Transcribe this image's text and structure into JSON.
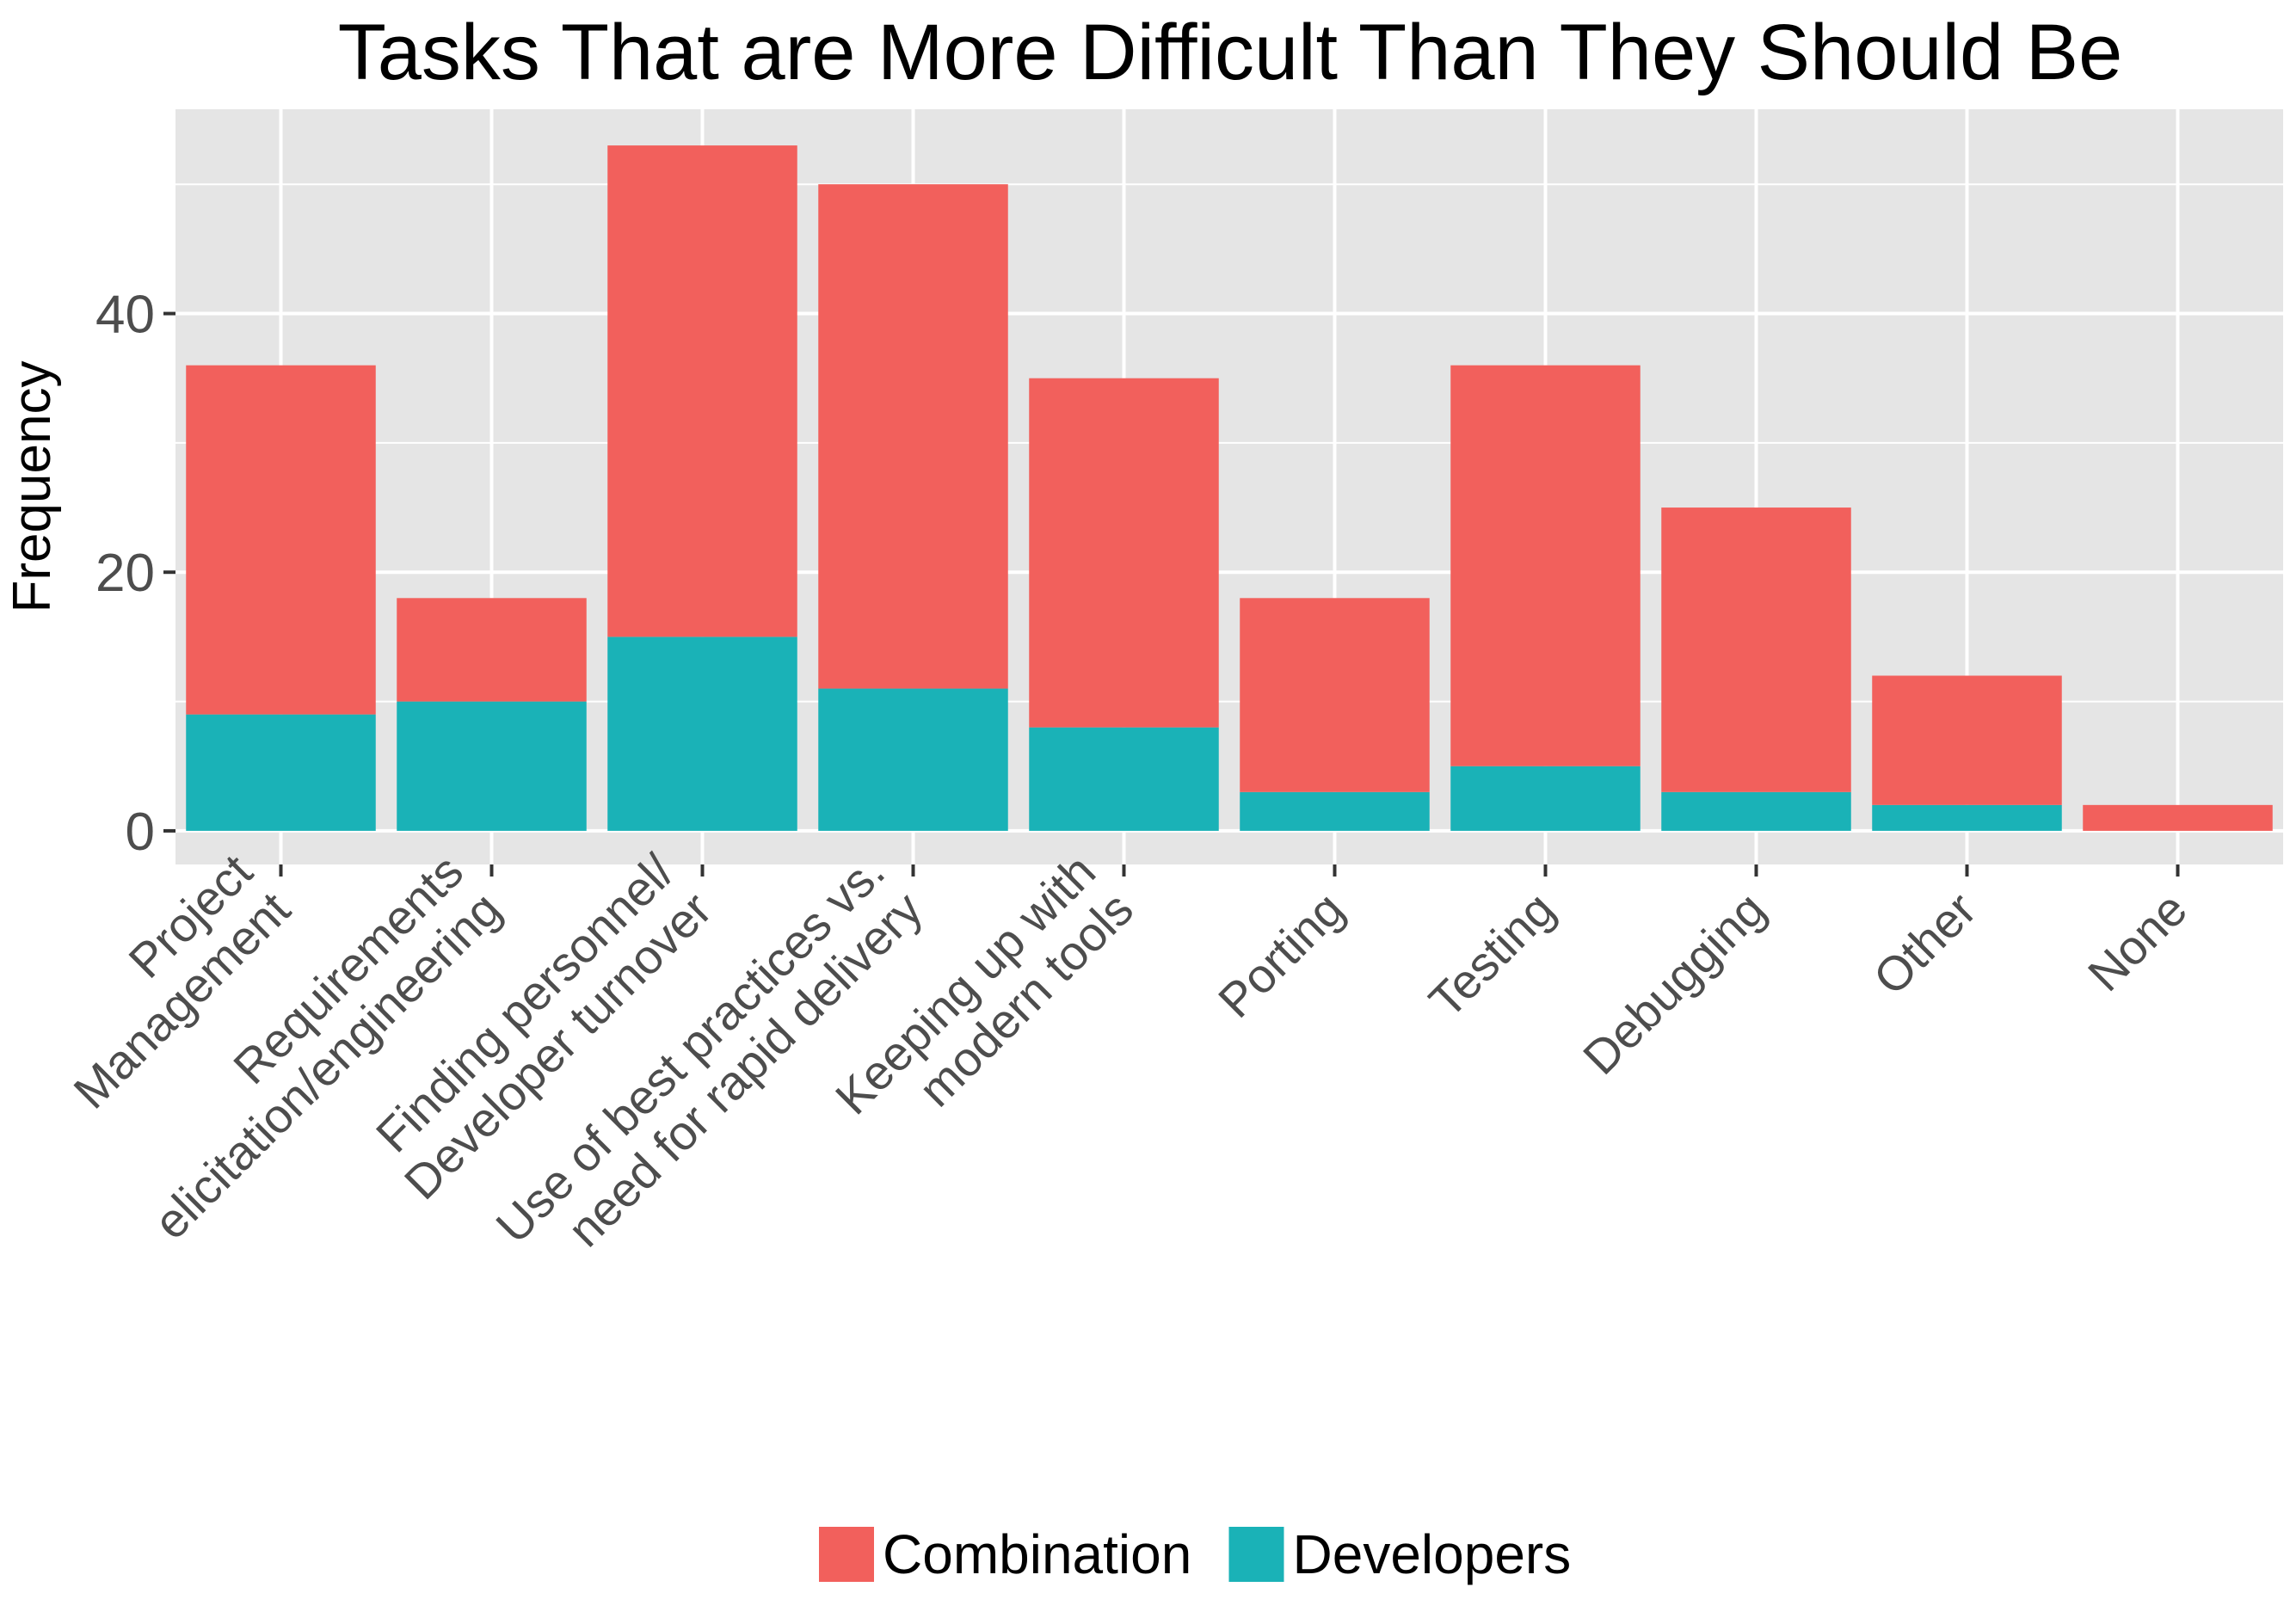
{
  "chart_data": {
    "type": "bar",
    "stacked": true,
    "title": "Tasks That are More Difficult Than They Should Be",
    "xlabel": "",
    "ylabel": "Frequency",
    "ylim": [
      -2.6,
      55.8
    ],
    "yticks": [
      0,
      20,
      40
    ],
    "grid": true,
    "legend_position": "bottom",
    "categories": [
      [
        "Project",
        "Management"
      ],
      [
        "Requirements",
        "elicitation/engineering"
      ],
      [
        "Finding personnel/",
        "Developer turnover"
      ],
      [
        "Use of best practices vs.",
        "need for rapid delivery"
      ],
      [
        "Keeping up with",
        "modern tools"
      ],
      [
        "Porting"
      ],
      [
        "Testing"
      ],
      [
        "Debugging"
      ],
      [
        "Other"
      ],
      [
        "None"
      ]
    ],
    "series": [
      {
        "name": "Combination",
        "color": "#F2605C",
        "values": [
          27,
          8,
          38,
          39,
          27,
          15,
          31,
          22,
          10,
          2
        ]
      },
      {
        "name": "Developers",
        "color": "#1AB2B7",
        "values": [
          9,
          10,
          15,
          11,
          8,
          3,
          5,
          3,
          2,
          0
        ]
      }
    ],
    "colors": {
      "panel": "#E5E5E5",
      "grid": "#FFFFFF",
      "tick": "#333333"
    }
  }
}
